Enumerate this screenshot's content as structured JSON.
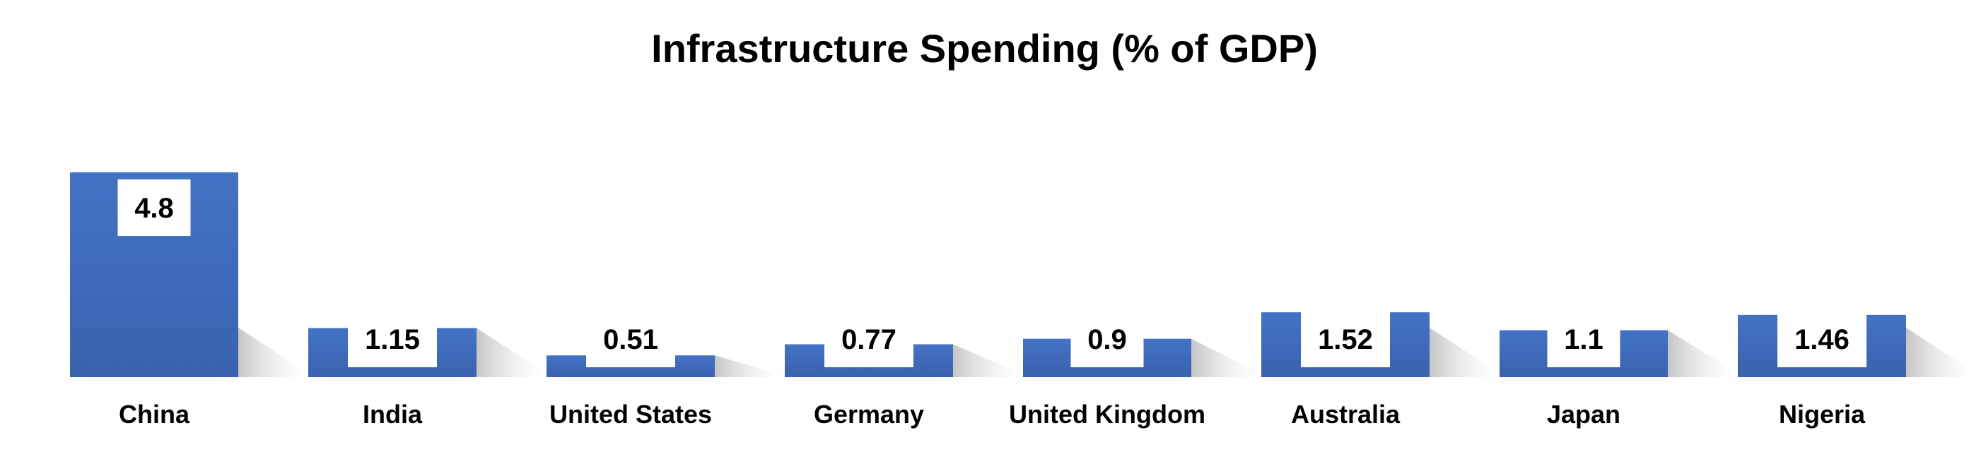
{
  "chart_data": {
    "type": "bar",
    "title": "Infrastructure Spending (% of GDP)",
    "categories": [
      "China",
      "India",
      "United States",
      "Germany",
      "United Kingdom",
      "Australia",
      "Japan",
      "Nigeria"
    ],
    "values": [
      4.8,
      1.15,
      0.51,
      0.77,
      0.9,
      1.52,
      1.1,
      1.46
    ],
    "xlabel": "",
    "ylabel": "",
    "grid": false,
    "legend": "none",
    "colors": {
      "bar_top": "#4472C4",
      "bar_bottom": "#3A62AF",
      "label_box": "#FFFFFF",
      "text": "#000000"
    }
  }
}
